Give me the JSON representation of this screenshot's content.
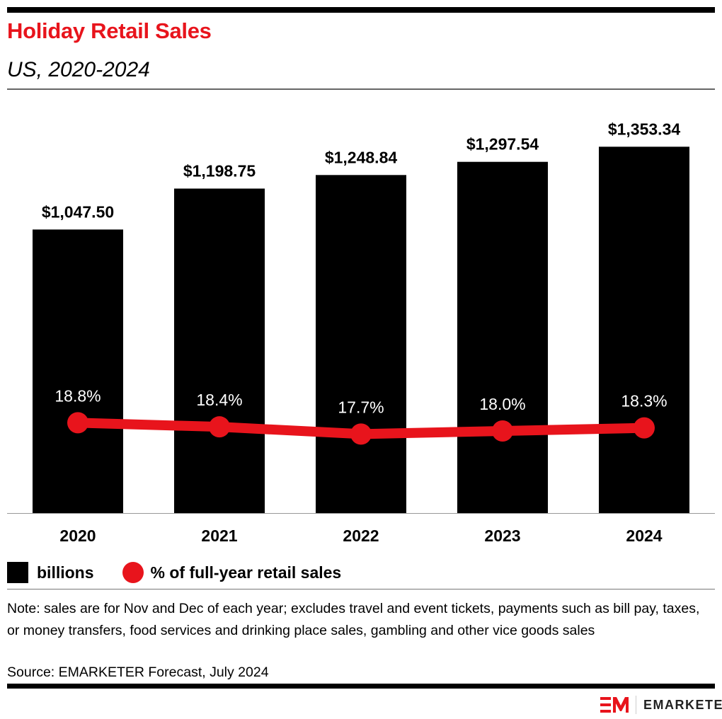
{
  "header": {
    "title": "Holiday Retail Sales",
    "subtitle": "US, 2020-2024"
  },
  "chart_data": {
    "type": "bar+line",
    "title": "Holiday Retail Sales",
    "subtitle": "US, 2020-2024",
    "categories": [
      "2020",
      "2021",
      "2022",
      "2023",
      "2024"
    ],
    "series": [
      {
        "name": "billions",
        "type": "bar",
        "values": [
          1047.5,
          1198.75,
          1248.84,
          1297.54,
          1353.34
        ],
        "labels": [
          "$1,047.50",
          "$1,198.75",
          "$1,248.84",
          "$1,297.54",
          "$1,353.34"
        ],
        "color": "#000000",
        "ylim": [
          0,
          1600
        ]
      },
      {
        "name": "% of full-year retail sales",
        "type": "line",
        "values": [
          18.8,
          18.4,
          17.7,
          18.0,
          18.3
        ],
        "labels": [
          "18.8%",
          "18.4%",
          "17.7%",
          "18.0%",
          "18.3%"
        ],
        "color": "#e8141c",
        "ylim": [
          10,
          52.2
        ]
      }
    ],
    "grid": false,
    "legend": "bottom-left"
  },
  "legend": {
    "bar_label": "billions",
    "line_label": "% of full-year retail sales"
  },
  "footer": {
    "note": "Note: sales are for Nov and Dec of each year; excludes travel and event tickets, payments such as bill pay, taxes, or money transfers, food services and drinking place sales, gambling and other vice goods sales",
    "source": "Source: EMARKETER Forecast, July 2024",
    "logo_text": "EMARKETER"
  },
  "colors": {
    "accent": "#e8141c",
    "bar": "#000000"
  }
}
